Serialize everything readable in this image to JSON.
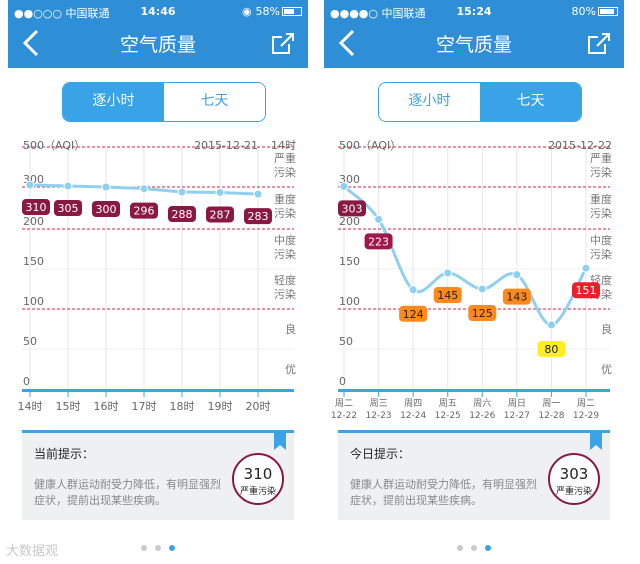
{
  "phones": [
    {
      "status": {
        "carrier": "●●○○○ 中国联通",
        "time": "14:46",
        "battery": "58%",
        "battery_level": 0.58
      },
      "nav": {
        "title": "空气质量",
        "back_icon": "chevron-left-icon",
        "share_icon": "share-icon"
      },
      "tabs": [
        {
          "label": "逐小时",
          "active": true
        },
        {
          "label": "七天",
          "active": false
        }
      ],
      "chart_data": {
        "type": "line",
        "ylabel": "500（AQI）",
        "date": "2015-12-21",
        "corner_label": "14时",
        "y_ticks": [
          {
            "value": 0,
            "label": "0"
          },
          {
            "value": 50,
            "label": "50"
          },
          {
            "value": 100,
            "label": "100"
          },
          {
            "value": 150,
            "label": "150"
          },
          {
            "value": 200,
            "label": "200"
          },
          {
            "value": 300,
            "label": "300"
          },
          {
            "value": 500,
            "label": "500"
          }
        ],
        "threshold_lines": [
          100,
          200,
          300,
          500
        ],
        "level_labels": [
          {
            "text": [
              "严重",
              "污染"
            ],
            "y": 400
          },
          {
            "text": [
              "重度",
              "污染"
            ],
            "y": 250
          },
          {
            "text": [
              "中度",
              "污染"
            ],
            "y": 175
          },
          {
            "text": [
              "轻度",
              "污染"
            ],
            "y": 125
          },
          {
            "text": [
              "良"
            ],
            "y": 75
          },
          {
            "text": [
              "优"
            ],
            "y": 25
          }
        ],
        "x": [
          {
            "top": "14时",
            "bottom": ""
          },
          {
            "top": "15时",
            "bottom": ""
          },
          {
            "top": "16时",
            "bottom": ""
          },
          {
            "top": "17时",
            "bottom": ""
          },
          {
            "top": "18时",
            "bottom": ""
          },
          {
            "top": "19时",
            "bottom": ""
          },
          {
            "top": "20时",
            "bottom": ""
          }
        ],
        "values": [
          310,
          305,
          300,
          296,
          288,
          287,
          283
        ],
        "label_colors": [
          "#8a1942",
          "#8a1942",
          "#8a1942",
          "#8a1942",
          "#8a1942",
          "#8a1942",
          "#8a1942"
        ],
        "label_text_colors": [
          "#ffffff",
          "#ffffff",
          "#ffffff",
          "#ffffff",
          "#ffffff",
          "#ffffff",
          "#ffffff"
        ],
        "label_position": "below",
        "smooth": false
      },
      "tip": {
        "title": "当前提示：",
        "body": "健康人群运动耐受力降低，有明显强烈症状，提前出现某些疾病。",
        "aqi": "310",
        "level": "严重污染"
      }
    },
    {
      "status": {
        "carrier": "●●●●○ 中国联通",
        "time": "15:24",
        "battery": "80%",
        "battery_level": 0.8
      },
      "nav": {
        "title": "空气质量",
        "back_icon": "chevron-left-icon",
        "share_icon": "share-icon"
      },
      "tabs": [
        {
          "label": "逐小时",
          "active": false
        },
        {
          "label": "七天",
          "active": true
        }
      ],
      "chart_data": {
        "type": "line",
        "ylabel": "500（AQI）",
        "date": "2015-12-22",
        "corner_label": "",
        "y_ticks": [
          {
            "value": 0,
            "label": "0"
          },
          {
            "value": 50,
            "label": "50"
          },
          {
            "value": 100,
            "label": "100"
          },
          {
            "value": 150,
            "label": "150"
          },
          {
            "value": 200,
            "label": "200"
          },
          {
            "value": 300,
            "label": "300"
          },
          {
            "value": 500,
            "label": "500"
          }
        ],
        "threshold_lines": [
          100,
          200,
          300,
          500
        ],
        "level_labels": [
          {
            "text": [
              "严重",
              "污染"
            ],
            "y": 400
          },
          {
            "text": [
              "重度",
              "污染"
            ],
            "y": 250
          },
          {
            "text": [
              "中度",
              "污染"
            ],
            "y": 175
          },
          {
            "text": [
              "轻度",
              "污染"
            ],
            "y": 125
          },
          {
            "text": [
              "良"
            ],
            "y": 75
          },
          {
            "text": [
              "优"
            ],
            "y": 25
          }
        ],
        "x": [
          {
            "top": "周二",
            "bottom": "12-22"
          },
          {
            "top": "周三",
            "bottom": "12-23"
          },
          {
            "top": "周四",
            "bottom": "12-24"
          },
          {
            "top": "周五",
            "bottom": "12-25"
          },
          {
            "top": "周六",
            "bottom": "12-26"
          },
          {
            "top": "周日",
            "bottom": "12-27"
          },
          {
            "top": "周一",
            "bottom": "12-28"
          },
          {
            "top": "周二",
            "bottom": "12-29"
          }
        ],
        "values": [
          303,
          223,
          124,
          145,
          125,
          143,
          80,
          151
        ],
        "label_colors": [
          "#8a1942",
          "#a0174a",
          "#ff8a1c",
          "#ff8a1c",
          "#ff8a1c",
          "#ff8a1c",
          "#ffee22",
          "#e8202a"
        ],
        "label_text_colors": [
          "#ffffff",
          "#ffffff",
          "#222222",
          "#222222",
          "#222222",
          "#222222",
          "#222222",
          "#ffffff"
        ],
        "label_position": "mixed",
        "smooth": true
      },
      "tip": {
        "title": "今日提示：",
        "body": "健康人群运动耐受力降低，有明显强烈症状，提前出现某些疾病。",
        "aqi": "303",
        "level": "严重污染"
      }
    }
  ],
  "pager": {
    "count": 3,
    "active": 2
  },
  "watermark": "大数据观",
  "colors": {
    "nav_bg": "#2e8fd6",
    "accent": "#38a3e6",
    "line": "#8fd0f0",
    "severe": "#8a1942",
    "threshold": "#d0204a"
  }
}
